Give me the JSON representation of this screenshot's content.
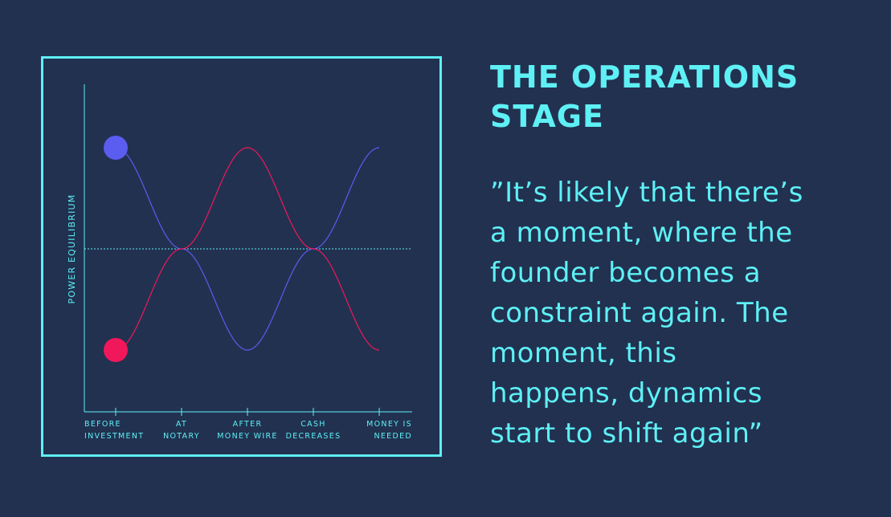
{
  "heading": {
    "title_line1": "THE OPERATIONS",
    "title_line2": "STAGE"
  },
  "quote": {
    "lines": [
      "”It’s likely that there’s",
      "a moment, where the",
      "founder becomes a",
      "constraint again. The",
      "moment, this",
      "happens, dynamics",
      "start to shift again”"
    ]
  },
  "colors": {
    "background": "#223150",
    "accent": "#5ef0f5",
    "founder_series": "#5b5cf0",
    "investor_series": "#f0185a"
  },
  "chart_data": {
    "type": "line",
    "ylabel": "POWER EQUILIBRIUM",
    "xlabel": "",
    "categories": [
      [
        "BEFORE",
        "INVESTMENT"
      ],
      [
        "AT",
        "NOTARY"
      ],
      [
        "AFTER",
        "MONEY WIRE"
      ],
      [
        "CASH",
        "DECREASES"
      ],
      [
        "MONEY IS",
        "NEEDED"
      ]
    ],
    "x": [
      0,
      1,
      2,
      3,
      4
    ],
    "ylim": [
      -1,
      1
    ],
    "equilibrium_line": 0,
    "grid": false,
    "series": [
      {
        "color": "#5b5cf0",
        "values": [
          0.9,
          0.0,
          -0.9,
          0.0,
          0.9
        ]
      },
      {
        "color": "#f0185a",
        "values": [
          -0.9,
          0.0,
          0.9,
          0.0,
          -0.9
        ]
      }
    ]
  }
}
